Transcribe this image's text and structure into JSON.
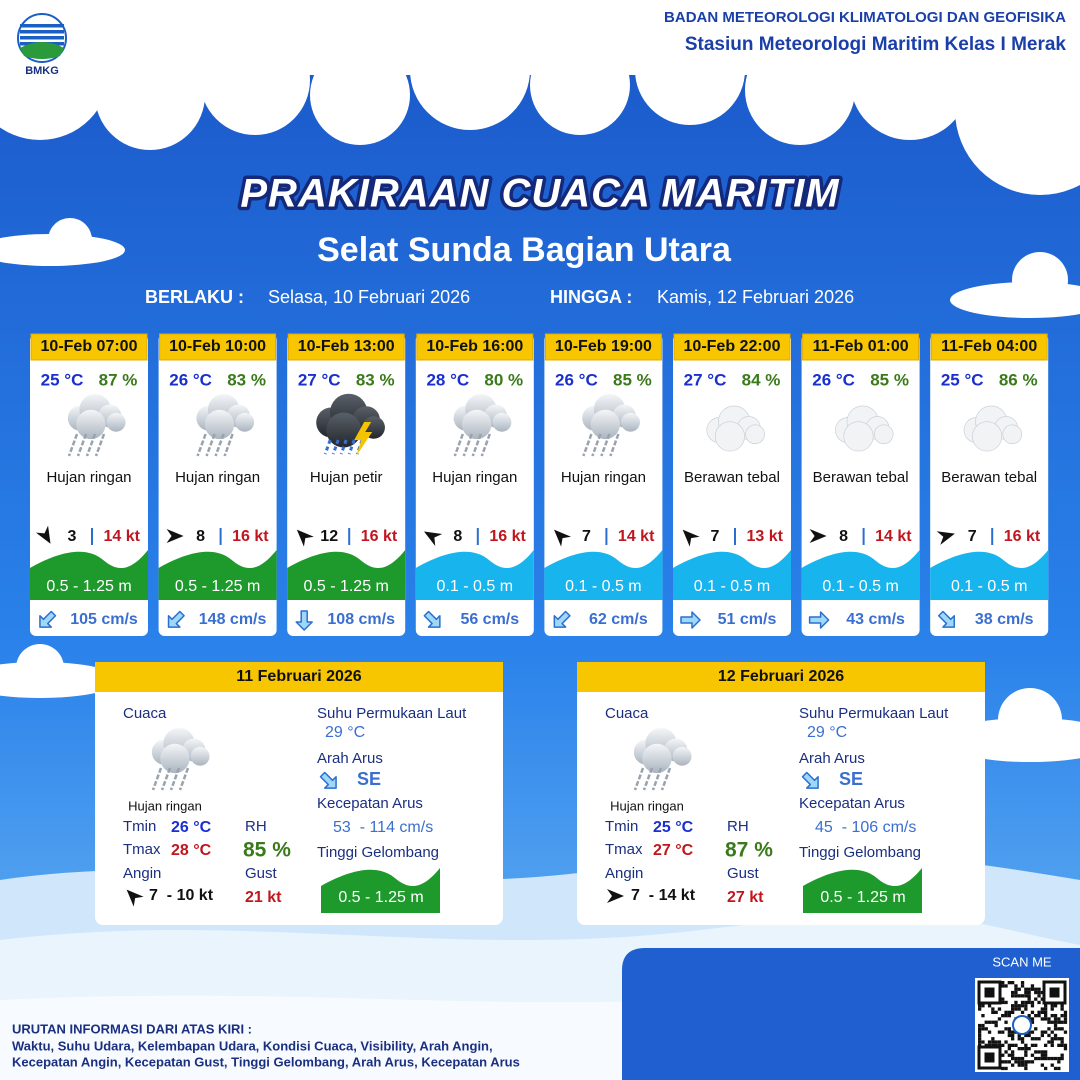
{
  "header": {
    "logo": "BMKG",
    "agency": "BADAN METEOROLOGI KLIMATOLOGI DAN GEOFISIKA",
    "station": "Stasiun Meteorologi Maritim Kelas I Merak"
  },
  "title": "PRAKIRAAN CUACA MARITIM",
  "subtitle": "Selat Sunda Bagian Utara",
  "validity": {
    "from_label": "BERLAKU :",
    "from": "Selasa, 10 Februari 2026",
    "to_label": "HINGGA :",
    "to": "Kamis, 12 Februari 2026"
  },
  "forecasts": [
    {
      "time": "10-Feb 07:00",
      "temp": "25 °C",
      "rh": "87 %",
      "condition": "Hujan ringan",
      "wind": "3",
      "gust": "14 kt",
      "wave": "0.5 - 1.25 m",
      "wave_color": "#1e9a2c",
      "current": "105 cm/s"
    },
    {
      "time": "10-Feb 10:00",
      "temp": "26 °C",
      "rh": "83 %",
      "condition": "Hujan ringan",
      "wind": "8",
      "gust": "16 kt",
      "wave": "0.5 - 1.25 m",
      "wave_color": "#1e9a2c",
      "current": "148 cm/s"
    },
    {
      "time": "10-Feb 13:00",
      "temp": "27 °C",
      "rh": "83 %",
      "condition": "Hujan petir",
      "wind": "12",
      "gust": "16 kt",
      "wave": "0.5 - 1.25 m",
      "wave_color": "#1e9a2c",
      "current": "108 cm/s"
    },
    {
      "time": "10-Feb 16:00",
      "temp": "28 °C",
      "rh": "80 %",
      "condition": "Hujan ringan",
      "wind": "8",
      "gust": "16 kt",
      "wave": "0.1 - 0.5 m",
      "wave_color": "#18b4ee",
      "current": "56 cm/s"
    },
    {
      "time": "10-Feb 19:00",
      "temp": "26 °C",
      "rh": "85 %",
      "condition": "Hujan ringan",
      "wind": "7",
      "gust": "14 kt",
      "wave": "0.1 - 0.5 m",
      "wave_color": "#18b4ee",
      "current": "62 cm/s"
    },
    {
      "time": "10-Feb 22:00",
      "temp": "27 °C",
      "rh": "84 %",
      "condition": "Berawan tebal",
      "wind": "7",
      "gust": "13 kt",
      "wave": "0.1 - 0.5 m",
      "wave_color": "#18b4ee",
      "current": "51 cm/s"
    },
    {
      "time": "11-Feb 01:00",
      "temp": "26 °C",
      "rh": "85 %",
      "condition": "Berawan tebal",
      "wind": "8",
      "gust": "14 kt",
      "wave": "0.1 - 0.5 m",
      "wave_color": "#18b4ee",
      "current": "43 cm/s"
    },
    {
      "time": "11-Feb 04:00",
      "temp": "25 °C",
      "rh": "86 %",
      "condition": "Berawan tebal",
      "wind": "7",
      "gust": "16 kt",
      "wave": "0.1 - 0.5 m",
      "wave_color": "#18b4ee",
      "current": "38 cm/s"
    }
  ],
  "daily": [
    {
      "date": "11 Februari 2026",
      "weather_label": "Cuaca",
      "condition": "Hujan ringan",
      "tmin_label": "Tmin",
      "tmin": "26 °C",
      "tmax_label": "Tmax",
      "tmax": "28 °C",
      "wind_label": "Angin",
      "wind": "7  - 10 kt",
      "rh_label": "RH",
      "rh": "85 %",
      "gust_label": "Gust",
      "gust": "21 kt",
      "sst_label": "Suhu Permukaan Laut",
      "sst": "29 °C",
      "current_dir_label": "Arah Arus",
      "current_dir": "SE",
      "current_speed_label": "Kecepatan Arus",
      "current_speed": "53  - 114 cm/s",
      "wave_label": "Tinggi Gelombang",
      "wave": "0.5 - 1.25 m",
      "wave_color": "#1e9a2c"
    },
    {
      "date": "12 Februari 2026",
      "weather_label": "Cuaca",
      "condition": "Hujan ringan",
      "tmin_label": "Tmin",
      "tmin": "25 °C",
      "tmax_label": "Tmax",
      "tmax": "27 °C",
      "wind_label": "Angin",
      "wind": "7  - 14 kt",
      "rh_label": "RH",
      "rh": "87 %",
      "gust_label": "Gust",
      "gust": "27 kt",
      "sst_label": "Suhu Permukaan Laut",
      "sst": "29 °C",
      "current_dir_label": "Arah Arus",
      "current_dir": "SE",
      "current_speed_label": "Kecepatan Arus",
      "current_speed": "45  - 106 cm/s",
      "wave_label": "Tinggi Gelombang",
      "wave": "0.5 - 1.25 m",
      "wave_color": "#1e9a2c"
    }
  ],
  "footer": {
    "scan": "SCAN ME",
    "note_title": "URUTAN INFORMASI DARI ATAS KIRI :",
    "note_lines": [
      "Waktu, Suhu Udara, Kelembapan Udara, Kondisi Cuaca, Visibility, Arah Angin,",
      "Kecepatan Angin, Kecepatan Gust, Tinggi Gelombang, Arah Arus, Kecepatan Arus"
    ]
  }
}
